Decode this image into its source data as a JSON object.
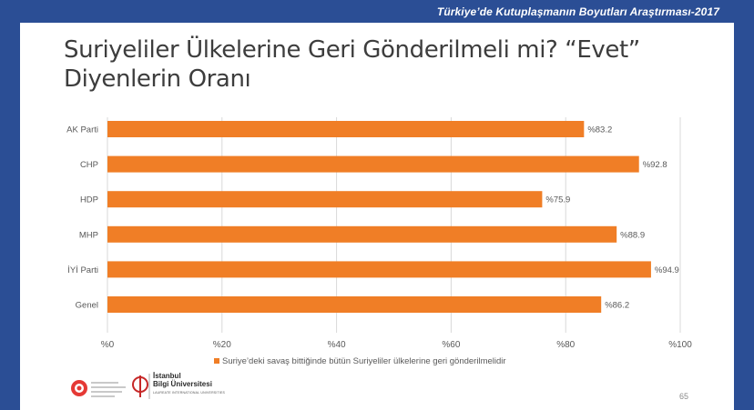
{
  "header": {
    "text": "Türkiye’de Kutuplaşmanın Boyutları Araştırması-2017"
  },
  "slide": {
    "title_line1": "Suriyeliler Ülkelerine Geri Gönderilmeli mi? “Evet”",
    "title_line2": "Diyenlerin Oranı",
    "page_number": "65"
  },
  "footer": {
    "university_name": "İstanbul\nBilgi Üniversitesi",
    "university_tag": "LAUREATE INTERNATIONAL UNIVERSITIES"
  },
  "chart_data": {
    "type": "bar",
    "orientation": "horizontal",
    "title": "Suriyeliler Ülkelerine Geri Gönderilmeli mi? “Evet” Diyenlerin Oranı",
    "categories": [
      "AK Parti",
      "CHP",
      "HDP",
      "MHP",
      "İYİ Parti",
      "Genel"
    ],
    "series": [
      {
        "name": "Suriye’deki savaş bittiğinde bütün Suriyeliler ülkelerine geri gönderilmelidir",
        "values": [
          83.2,
          92.8,
          75.9,
          88.9,
          94.9,
          86.2
        ],
        "color": "#f07e26"
      }
    ],
    "data_labels": [
      "%83.2",
      "%92.8",
      "%75.9",
      "%88.9",
      "%94.9",
      "%86.2"
    ],
    "x_ticks": [
      0,
      20,
      40,
      60,
      80,
      100
    ],
    "x_tick_labels": [
      "%0",
      "%20",
      "%40",
      "%60",
      "%80",
      "%100"
    ],
    "xlim": [
      0,
      100
    ],
    "grid": "vertical",
    "legend_position": "bottom"
  },
  "colors": {
    "background": "#2b4e95",
    "slide": "#ffffff",
    "bar": "#f07e26",
    "grid": "#d9d9d9",
    "text": "#595959"
  }
}
